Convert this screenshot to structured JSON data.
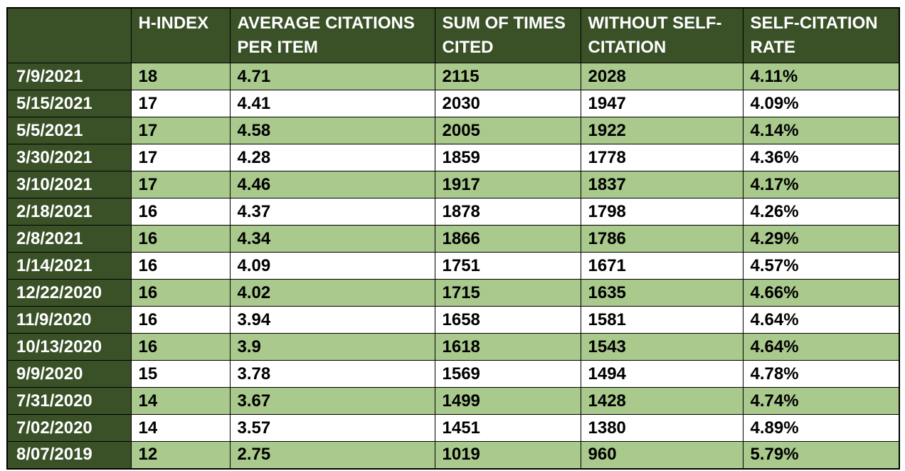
{
  "colors": {
    "header_bg": "#3a5128",
    "shaded_row_bg": "#a9c98d",
    "plain_row_bg": "#ffffff"
  },
  "chart_data": {
    "type": "table",
    "columns": [
      "",
      "H-INDEX",
      "AVERAGE CITATIONS PER ITEM",
      "SUM OF TIMES CITED",
      "WITHOUT SELF-CITATION",
      "SELF-CITATION RATE"
    ],
    "rows": [
      [
        "7/9/2021",
        "18",
        "4.71",
        "2115",
        "2028",
        "4.11%"
      ],
      [
        "5/15/2021",
        "17",
        "4.41",
        "2030",
        "1947",
        "4.09%"
      ],
      [
        "5/5/2021",
        "17",
        "4.58",
        "2005",
        "1922",
        "4.14%"
      ],
      [
        "3/30/2021",
        "17",
        "4.28",
        "1859",
        "1778",
        "4.36%"
      ],
      [
        "3/10/2021",
        "17",
        "4.46",
        "1917",
        "1837",
        "4.17%"
      ],
      [
        "2/18/2021",
        "16",
        "4.37",
        "1878",
        "1798",
        "4.26%"
      ],
      [
        "2/8/2021",
        "16",
        "4.34",
        "1866",
        "1786",
        "4.29%"
      ],
      [
        "1/14/2021",
        "16",
        "4.09",
        "1751",
        "1671",
        "4.57%"
      ],
      [
        "12/22/2020",
        "16",
        "4.02",
        "1715",
        "1635",
        "4.66%"
      ],
      [
        "11/9/2020",
        "16",
        "3.94",
        "1658",
        "1581",
        "4.64%"
      ],
      [
        "10/13/2020",
        "16",
        "3.9",
        "1618",
        "1543",
        "4.64%"
      ],
      [
        "9/9/2020",
        "15",
        "3.78",
        "1569",
        "1494",
        "4.78%"
      ],
      [
        "7/31/2020",
        "14",
        "3.67",
        "1499",
        "1428",
        "4.74%"
      ],
      [
        "7/02/2020",
        "14",
        "3.57",
        "1451",
        "1380",
        "4.89%"
      ],
      [
        "8/07/2019",
        "12",
        "2.75",
        "1019",
        "960",
        "5.79%"
      ]
    ]
  }
}
